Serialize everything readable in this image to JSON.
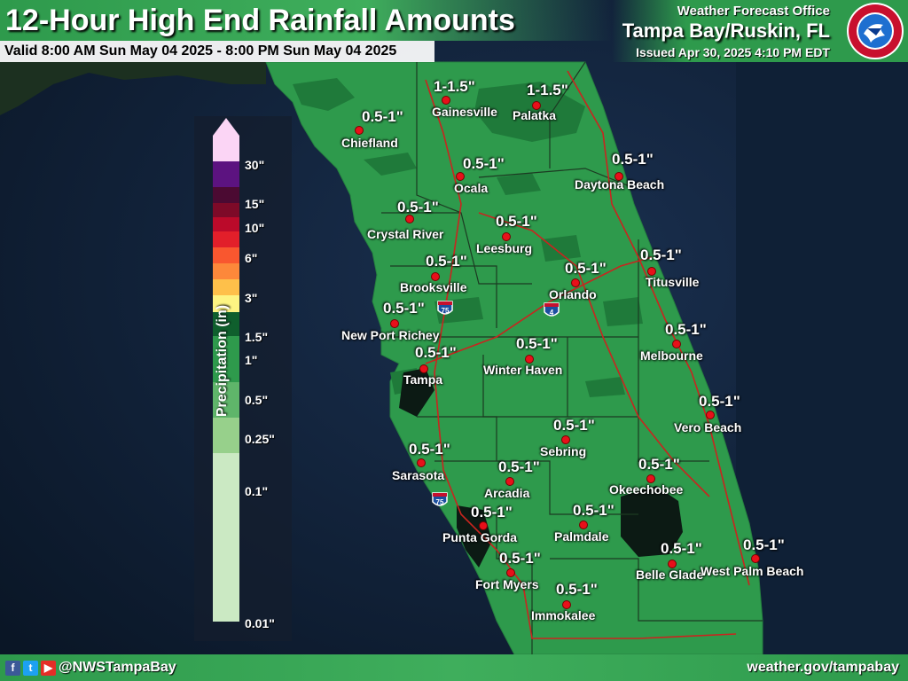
{
  "header": {
    "title": "12-Hour High End Rainfall Amounts",
    "valid": "Valid 8:00 AM Sun May 04 2025 - 8:00 PM Sun May 04 2025",
    "office_line": "Weather Forecast Office",
    "office_name": "Tampa Bay/Ruskin, FL",
    "issued": "Issued Apr 30, 2025 4:10 PM EDT",
    "seal_text": "NATIONAL WEATHER SERVICE"
  },
  "legend": {
    "title": "Precipitation (in)",
    "ticks": [
      "30\"",
      "15\"",
      "10\"",
      "6\"",
      "3\"",
      "1.5\"",
      "1\"",
      "0.5\"",
      "0.25\"",
      "0.1\"",
      "0.01\""
    ],
    "colors": [
      "#fbd5f5",
      "#5c1380",
      "#4b0a32",
      "#7d0a28",
      "#bb0a2a",
      "#e21f2a",
      "#f9572f",
      "#fd883a",
      "#fec04a",
      "#fdf482",
      "#0f5f2d",
      "#2e9a4c",
      "#5fb56a",
      "#97d08b",
      "#cbe9c3"
    ]
  },
  "map": {
    "interstates": [
      "75",
      "4",
      "75"
    ],
    "cities": [
      {
        "name": "Gainesville",
        "amount": "1-1.5\""
      },
      {
        "name": "Palatka",
        "amount": "1-1.5\""
      },
      {
        "name": "Chiefland",
        "amount": "0.5-1\""
      },
      {
        "name": "Ocala",
        "amount": "0.5-1\""
      },
      {
        "name": "Daytona Beach",
        "amount": "0.5-1\""
      },
      {
        "name": "Crystal River",
        "amount": "0.5-1\""
      },
      {
        "name": "Leesburg",
        "amount": "0.5-1\""
      },
      {
        "name": "Brooksville",
        "amount": "0.5-1\""
      },
      {
        "name": "Orlando",
        "amount": "0.5-1\""
      },
      {
        "name": "Titusville",
        "amount": "0.5-1\""
      },
      {
        "name": "New Port Richey",
        "amount": "0.5-1\""
      },
      {
        "name": "Melbourne",
        "amount": "0.5-1\""
      },
      {
        "name": "Tampa",
        "amount": "0.5-1\""
      },
      {
        "name": "Winter Haven",
        "amount": "0.5-1\""
      },
      {
        "name": "Vero Beach",
        "amount": "0.5-1\""
      },
      {
        "name": "Sebring",
        "amount": "0.5-1\""
      },
      {
        "name": "Sarasota",
        "amount": "0.5-1\""
      },
      {
        "name": "Arcadia",
        "amount": "0.5-1\""
      },
      {
        "name": "Okeechobee",
        "amount": "0.5-1\""
      },
      {
        "name": "Punta Gorda",
        "amount": "0.5-1\""
      },
      {
        "name": "Palmdale",
        "amount": "0.5-1\""
      },
      {
        "name": "Fort Myers",
        "amount": "0.5-1\""
      },
      {
        "name": "Belle Glade",
        "amount": "0.5-1\""
      },
      {
        "name": "West Palm Beach",
        "amount": "0.5-1\""
      },
      {
        "name": "Immokalee",
        "amount": "0.5-1\""
      }
    ]
  },
  "footer": {
    "handle": "@NWSTampaBay",
    "website": "weather.gov/tampabay",
    "social_icons": [
      "facebook-icon",
      "twitter-icon",
      "youtube-icon"
    ]
  },
  "colors": {
    "land_rain": "#2e9a4c",
    "land_heavy": "#0f5f2d",
    "water": "#0d1b2e",
    "county_lines": "#1c3a22",
    "roads": "#c8251f",
    "city_dot": "#e8101a",
    "banner": "#2e9a4c"
  }
}
